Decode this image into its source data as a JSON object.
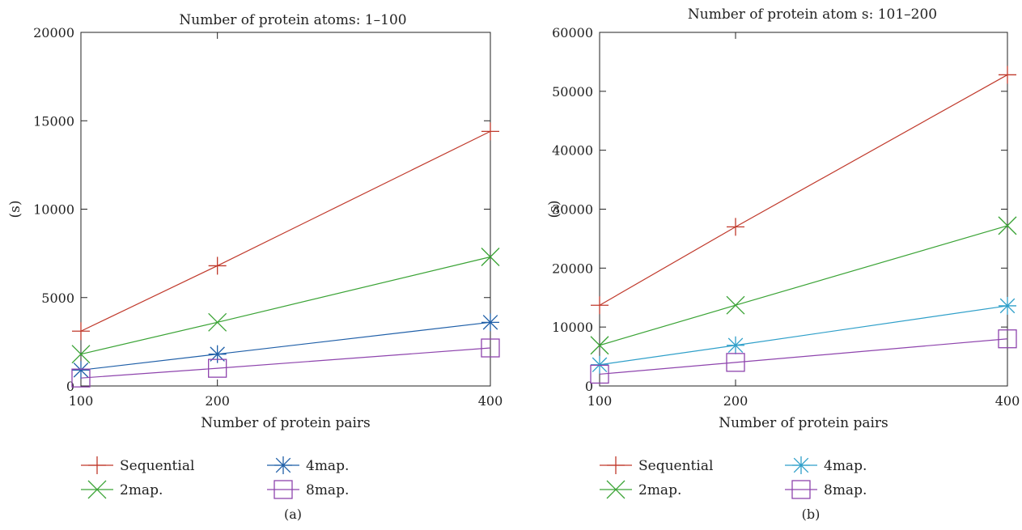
{
  "chart_data": [
    {
      "type": "line",
      "panel_label": "(a)",
      "title": "Number of protein atoms: 1–100",
      "xlabel": "Number of protein pairs",
      "ylabel": "(s)",
      "x_ticks": [
        100,
        200,
        400
      ],
      "y_ticks": [
        0,
        5000,
        10000,
        15000,
        20000
      ],
      "ylim": [
        0,
        20000
      ],
      "xlim": [
        100,
        400
      ],
      "grid": false,
      "legend_position": "bottom",
      "series": [
        {
          "name": "Sequential",
          "color": "#c0392b",
          "marker": "plus",
          "x": [
            100,
            200,
            400
          ],
          "y": [
            3100,
            6800,
            14400
          ]
        },
        {
          "name": "2map.",
          "color": "#3aa335",
          "marker": "cross",
          "x": [
            100,
            200,
            400
          ],
          "y": [
            1800,
            3600,
            7300
          ]
        },
        {
          "name": "4map.",
          "color": "#1f5fa8",
          "marker": "star",
          "x": [
            100,
            200,
            400
          ],
          "y": [
            900,
            1800,
            3600
          ]
        },
        {
          "name": "8map.",
          "color": "#8e44ad",
          "marker": "square",
          "x": [
            100,
            200,
            400
          ],
          "y": [
            450,
            1000,
            2150
          ]
        }
      ]
    },
    {
      "type": "line",
      "panel_label": "(b)",
      "title": "Number of protein atom s: 101–200",
      "xlabel": "Number of protein pairs",
      "ylabel": "(s)",
      "x_ticks": [
        100,
        200,
        400
      ],
      "y_ticks": [
        0,
        10000,
        20000,
        30000,
        40000,
        50000,
        60000
      ],
      "ylim": [
        0,
        60000
      ],
      "xlim": [
        100,
        400
      ],
      "grid": false,
      "legend_position": "bottom",
      "series": [
        {
          "name": "Sequential",
          "color": "#c0392b",
          "marker": "plus",
          "x": [
            100,
            200,
            400
          ],
          "y": [
            13700,
            27000,
            52800
          ]
        },
        {
          "name": "2map.",
          "color": "#3aa335",
          "marker": "cross",
          "x": [
            100,
            200,
            400
          ],
          "y": [
            6900,
            13700,
            27200
          ]
        },
        {
          "name": "4map.",
          "color": "#2e9fc9",
          "marker": "star",
          "x": [
            100,
            200,
            400
          ],
          "y": [
            3600,
            6900,
            13600
          ]
        },
        {
          "name": "8map.",
          "color": "#8e44ad",
          "marker": "square",
          "x": [
            100,
            200,
            400
          ],
          "y": [
            2000,
            4000,
            8000
          ]
        }
      ]
    }
  ]
}
